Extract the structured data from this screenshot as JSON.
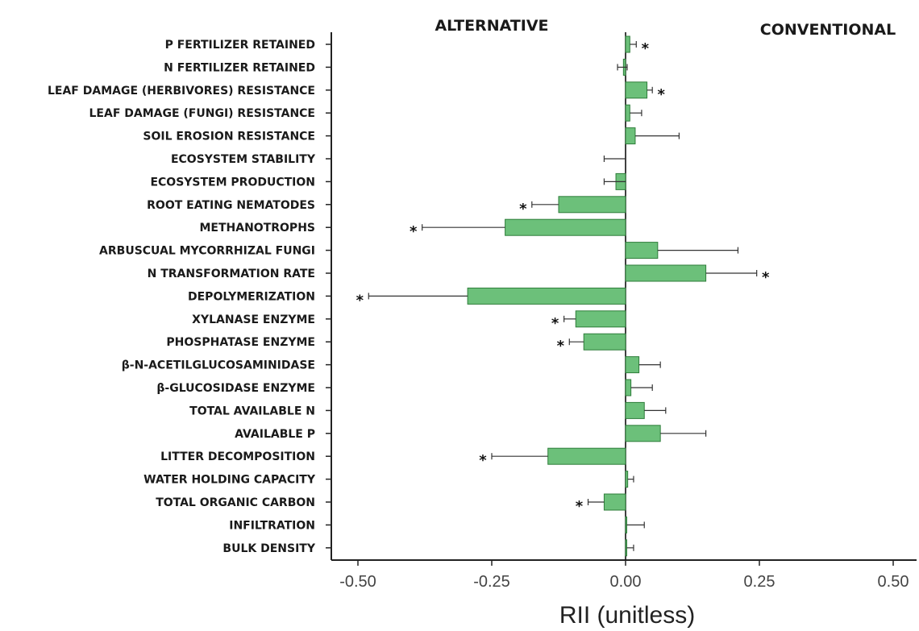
{
  "chart_data": {
    "type": "bar",
    "orientation": "horizontal",
    "headers": {
      "left": "ALTERNATIVE",
      "right": "CONVENTIONAL"
    },
    "xlabel": "RII (unitless)",
    "xlim": [
      -0.5,
      0.5
    ],
    "xticks": [
      "-0.50",
      "-0.25",
      "0.00",
      "0.25",
      "0.50"
    ],
    "xtick_values": [
      -0.5,
      -0.25,
      0,
      0.25,
      0.5
    ],
    "bar_color": "#6cc07a",
    "bar_edge_color": "#2e7d3a",
    "categories": [
      "P FERTILIZER RETAINED",
      "N FERTILIZER RETAINED",
      "LEAF DAMAGE (HERBIVORES) RESISTANCE",
      "LEAF DAMAGE (FUNGI) RESISTANCE",
      "SOIL EROSION RESISTANCE",
      "ECOSYSTEM STABILITY",
      "ECOSYSTEM PRODUCTION",
      "ROOT EATING NEMATODES",
      "METHANOTROPHS",
      "ARBUSCUAL MYCORRHIZAL FUNGI",
      "N TRANSFORMATION RATE",
      "DEPOLYMERIZATION",
      "XYLANASE ENZYME",
      "PHOSPHATASE ENZYME",
      "β-N-ACETILGLUCOSAMINIDASE",
      "β-GLUCOSIDASE ENZYME",
      "TOTAL AVAILABLE N",
      "AVAILABLE P",
      "LITTER DECOMPOSITION",
      "WATER HOLDING CAPACITY",
      "TOTAL ORGANIC CARBON",
      "INFILTRATION",
      "BULK DENSITY"
    ],
    "values": [
      0.008,
      -0.004,
      0.04,
      0.008,
      0.018,
      0.0,
      -0.018,
      -0.125,
      -0.225,
      0.06,
      0.15,
      -0.295,
      -0.093,
      -0.078,
      0.025,
      0.01,
      0.035,
      0.065,
      -0.145,
      0.004,
      -0.04,
      0.002,
      0.002
    ],
    "error_upper": [
      0.02,
      0.003,
      0.05,
      0.03,
      0.1,
      0.0,
      0.0,
      -0.125,
      -0.225,
      0.21,
      0.245,
      -0.295,
      -0.093,
      -0.078,
      0.065,
      0.05,
      0.075,
      0.15,
      -0.145,
      0.015,
      -0.04,
      0.035,
      0.015
    ],
    "error_lower": [
      0.008,
      -0.015,
      0.04,
      0.008,
      0.018,
      -0.04,
      -0.04,
      -0.175,
      -0.38,
      0.06,
      0.15,
      -0.48,
      -0.115,
      -0.105,
      0.025,
      0.01,
      0.035,
      0.065,
      -0.25,
      0.004,
      -0.07,
      0.002,
      0.002
    ],
    "significant": [
      true,
      false,
      true,
      false,
      false,
      false,
      false,
      true,
      true,
      false,
      true,
      true,
      true,
      true,
      false,
      false,
      false,
      false,
      true,
      false,
      true,
      false,
      false
    ],
    "significance_marker": "*"
  }
}
